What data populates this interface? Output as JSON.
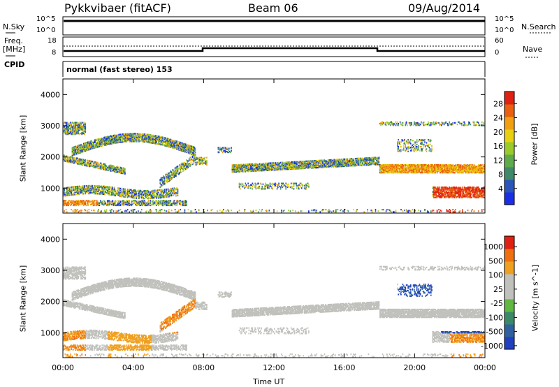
{
  "header": {
    "station": "Pykkvibaer (fitACF)",
    "beam": "Beam 06",
    "date": "09/Aug/2014"
  },
  "top_panels": {
    "nsky_label": "N.Sky",
    "nsearch_label": "N.Search",
    "noise_ticks": [
      "10^5",
      "10^0"
    ],
    "freq_label_1": "Freq.",
    "freq_label_2": "[MHz]",
    "freq_ticks": [
      "18",
      "8"
    ],
    "nave_label": "Nave",
    "nave_ticks": [
      "60",
      "0"
    ],
    "cpid_label": "CPID",
    "cpid_text": "normal (fast stereo) 153"
  },
  "chart_data": [
    {
      "type": "heatmap",
      "title": "",
      "ylabel": "Slant Range [km]",
      "xlabel": "",
      "ylim": [
        200,
        4500
      ],
      "yticks": [
        "1000",
        "2000",
        "3000",
        "4000"
      ],
      "xticks": [
        "00:00",
        "04:00",
        "08:00",
        "12:00",
        "16:00",
        "20:00",
        "00:00"
      ],
      "colorbar": {
        "label": "Power [dB]",
        "ticks": [
          "4",
          "8",
          "12",
          "16",
          "20",
          "24",
          "28"
        ],
        "colors": [
          "#1a2ee8",
          "#2b55b8",
          "#3f8a6a",
          "#5faa4a",
          "#9acb2a",
          "#e8d010",
          "#f0a010",
          "#e86010",
          "#e02010"
        ]
      }
    },
    {
      "type": "heatmap",
      "title": "",
      "ylabel": "Slant Range [km]",
      "xlabel": "Time UT",
      "ylim": [
        200,
        4500
      ],
      "yticks": [
        "1000",
        "2000",
        "3000",
        "4000"
      ],
      "xticks": [
        "00:00",
        "04:00",
        "08:00",
        "12:00",
        "16:00",
        "20:00",
        "00:00"
      ],
      "colorbar": {
        "label": "Velocity [m s^-1]",
        "ticks": [
          "1000",
          "500",
          "100",
          "25",
          "-25",
          "-100",
          "-500",
          "-1000"
        ],
        "colors": [
          "#2040c0",
          "#3060a0",
          "#3a8a6a",
          "#60b840",
          "#c0c0bc",
          "#c0c0bc",
          "#f0a020",
          "#f07010",
          "#e02010"
        ]
      }
    }
  ]
}
